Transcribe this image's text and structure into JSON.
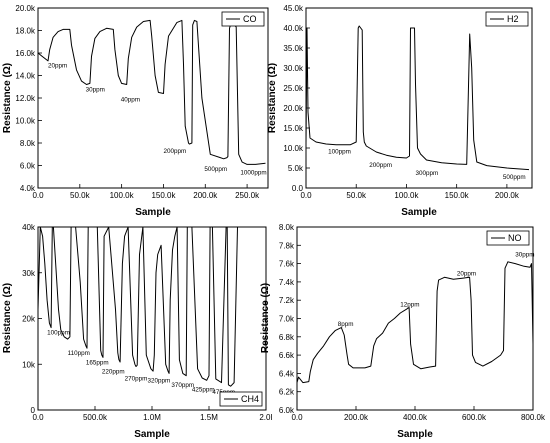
{
  "chart_data": [
    {
      "type": "line",
      "xlabel": "Sample",
      "ylabel": "Resistance (Ω)",
      "xlim": [
        0,
        275000
      ],
      "ylim": [
        4000,
        20000
      ],
      "xticks": [
        0,
        50000,
        100000,
        150000,
        200000,
        250000
      ],
      "xtick_labels": [
        "0.0",
        "50.0k",
        "100.0k",
        "150.0k",
        "200.0k",
        "250.0k"
      ],
      "yticks": [
        4000,
        6000,
        8000,
        10000,
        12000,
        14000,
        16000,
        18000,
        20000
      ],
      "ytick_labels": [
        "4.0k",
        "6.0k",
        "8.0k",
        "10.0k",
        "12.0k",
        "14.0k",
        "16.0k",
        "18.0k",
        "20.0k"
      ],
      "legend": {
        "label": "CO",
        "position": "top-right"
      },
      "annotations": [
        {
          "text": "20ppm",
          "x": 12000,
          "y": 14700
        },
        {
          "text": "30ppm",
          "x": 57000,
          "y": 12600
        },
        {
          "text": "40ppm",
          "x": 99000,
          "y": 11700
        },
        {
          "text": "200ppm",
          "x": 150000,
          "y": 7100
        },
        {
          "text": "500ppm",
          "x": 199000,
          "y": 5500
        },
        {
          "text": "1000ppm",
          "x": 242000,
          "y": 5200
        }
      ],
      "series": [
        {
          "x": [
            0,
            5000,
            12000,
            14000,
            18000,
            24000,
            30000,
            38000,
            40000,
            46000,
            52000,
            58000,
            62000,
            64000,
            68000,
            74000,
            82000,
            90000,
            92000,
            96000,
            100000,
            106000,
            108000,
            112000,
            118000,
            126000,
            134000,
            136000,
            140000,
            144000,
            150000,
            152000,
            156000,
            166000,
            172000,
            174000,
            176000,
            180000,
            181000,
            184000,
            185000,
            187000,
            190000,
            196000,
            206000,
            218000,
            222000,
            226000,
            227000,
            229000,
            231000,
            234000,
            237000,
            240000,
            244000,
            250000,
            260000,
            272000
          ],
          "values": [
            16000,
            15700,
            15300,
            16300,
            17400,
            17900,
            18100,
            18100,
            16700,
            14500,
            13500,
            13200,
            13300,
            15700,
            17300,
            17900,
            18200,
            18100,
            16300,
            14000,
            13300,
            13200,
            15500,
            17400,
            18300,
            18800,
            18900,
            17500,
            14000,
            12500,
            12400,
            15000,
            17500,
            18700,
            18900,
            15000,
            9500,
            8000,
            7900,
            8000,
            18500,
            18900,
            18800,
            12000,
            7000,
            6700,
            6600,
            6700,
            6800,
            18200,
            18700,
            18600,
            18300,
            7000,
            6300,
            6100,
            6100,
            6200
          ]
        }
      ]
    },
    {
      "type": "line",
      "xlabel": "Sample",
      "ylabel": "Resistance (Ω)",
      "xlim": [
        0,
        225000
      ],
      "ylim": [
        0,
        45000
      ],
      "xticks": [
        0,
        50000,
        100000,
        150000,
        200000
      ],
      "xtick_labels": [
        "0.0",
        "50.0k",
        "100.0k",
        "150.0k",
        "200.0k"
      ],
      "yticks": [
        0,
        5000,
        10000,
        15000,
        20000,
        25000,
        30000,
        35000,
        40000,
        45000
      ],
      "ytick_labels": [
        "0.0",
        "5.0k",
        "10.0k",
        "15.0k",
        "20.0k",
        "25.0k",
        "30.0k",
        "35.0k",
        "40.0k",
        "45.0k"
      ],
      "legend": {
        "label": "H2",
        "position": "top-right"
      },
      "annotations": [
        {
          "text": "100ppm",
          "x": 22000,
          "y": 8600
        },
        {
          "text": "200ppm",
          "x": 63000,
          "y": 5300
        },
        {
          "text": "300ppm",
          "x": 109000,
          "y": 3300
        },
        {
          "text": "500ppm",
          "x": 196000,
          "y": 2300
        }
      ],
      "series": [
        {
          "x": [
            0,
            1000,
            2000,
            4000,
            10000,
            20000,
            30000,
            44000,
            50000,
            52000,
            53000,
            56000,
            57000,
            58000,
            60000,
            70000,
            80000,
            90000,
            100000,
            103000,
            104000,
            108000,
            109000,
            111000,
            114000,
            120000,
            135000,
            150000,
            160000,
            163000,
            165000,
            167000,
            170000,
            180000,
            200000,
            222000
          ],
          "values": [
            11000,
            40000,
            19000,
            12500,
            11500,
            11000,
            10800,
            10800,
            11500,
            40000,
            40500,
            39500,
            14000,
            11500,
            10500,
            9000,
            8200,
            7700,
            7500,
            8000,
            40000,
            40000,
            26000,
            10000,
            8500,
            7000,
            6300,
            6000,
            5900,
            38500,
            30000,
            12000,
            6500,
            5600,
            5000,
            4600
          ]
        }
      ]
    },
    {
      "type": "line",
      "xlabel": "Sample",
      "ylabel": "Resistance (Ω)",
      "xlim": [
        0,
        2000000
      ],
      "ylim": [
        0,
        40000
      ],
      "xticks": [
        0,
        500000,
        1000000,
        1500000,
        2000000
      ],
      "xtick_labels": [
        "0.0",
        "500.0k",
        "1.0M",
        "1.5M",
        "2.0I"
      ],
      "yticks": [
        0,
        10000,
        20000,
        30000,
        40000
      ],
      "ytick_labels": [
        "0",
        "10k",
        "20k",
        "30k",
        "40k"
      ],
      "legend": {
        "label": "CH4",
        "position": "bottom-right"
      },
      "annotations": [
        {
          "text": "100ppm",
          "x": 80000,
          "y": 16500
        },
        {
          "text": "110ppm",
          "x": 260000,
          "y": 12000
        },
        {
          "text": "165ppm",
          "x": 420000,
          "y": 10000
        },
        {
          "text": "220ppm",
          "x": 560000,
          "y": 8000
        },
        {
          "text": "270ppm",
          "x": 760000,
          "y": 6500
        },
        {
          "text": "320ppm",
          "x": 960000,
          "y": 6000
        },
        {
          "text": "370ppm",
          "x": 1170000,
          "y": 5000
        },
        {
          "text": "425ppm",
          "x": 1350000,
          "y": 4000
        },
        {
          "text": "475ppm",
          "x": 1530000,
          "y": 3500
        }
      ],
      "series": [
        {
          "x": [
            0,
            20000,
            40000,
            60000,
            80000,
            100000,
            115000,
            125000,
            135000,
            180000,
            200000,
            230000,
            260000,
            280000,
            290000,
            320000,
            330000,
            370000,
            400000,
            420000,
            430000,
            440000,
            470000,
            520000,
            550000,
            560000,
            570000,
            580000,
            620000,
            680000,
            700000,
            710000,
            720000,
            740000,
            760000,
            790000,
            830000,
            850000,
            860000,
            870000,
            890000,
            920000,
            950000,
            990000,
            1010000,
            1020000,
            1035000,
            1050000,
            1080000,
            1120000,
            1140000,
            1150000,
            1160000,
            1180000,
            1200000,
            1220000,
            1240000,
            1270000,
            1300000,
            1310000,
            1325000,
            1350000,
            1400000,
            1440000,
            1480000,
            1500000,
            1510000,
            1530000,
            1560000,
            1610000,
            1650000,
            1660000,
            1670000,
            1690000,
            1720000,
            1750000,
            1780000,
            1800000,
            1830000,
            1860000
          ],
          "values": [
            22000,
            40000,
            38000,
            32000,
            24000,
            19000,
            18000,
            40000,
            40000,
            22000,
            17500,
            16000,
            15500,
            16000,
            40000,
            40000,
            40000,
            28000,
            15500,
            14000,
            13500,
            40000,
            40000,
            40000,
            13000,
            12000,
            11500,
            38000,
            40000,
            22000,
            12500,
            11000,
            10500,
            32000,
            38000,
            40000,
            12000,
            10000,
            9500,
            9800,
            34000,
            40000,
            12000,
            9000,
            8500,
            12000,
            30000,
            34000,
            36000,
            10000,
            8500,
            8000,
            24000,
            35000,
            38000,
            40000,
            11000,
            8000,
            7500,
            40000,
            40000,
            40000,
            9000,
            7000,
            6500,
            7500,
            40000,
            40000,
            6800,
            6000,
            40000,
            40000,
            5500,
            5200,
            6000,
            40000,
            40000,
            40000,
            40000,
            40000
          ]
        }
      ]
    },
    {
      "type": "line",
      "xlabel": "Sample",
      "ylabel": "Resistance (Ω)",
      "xlim": [
        0,
        800000
      ],
      "ylim": [
        6000,
        8000
      ],
      "xticks": [
        0,
        200000,
        400000,
        600000,
        800000
      ],
      "xtick_labels": [
        "0.0",
        "200.0k",
        "400.0k",
        "600.0k",
        "800.0k"
      ],
      "yticks": [
        6000,
        6200,
        6400,
        6600,
        6800,
        7000,
        7200,
        7400,
        7600,
        7800,
        8000
      ],
      "ytick_labels": [
        "6.0k",
        "6.2k",
        "6.4k",
        "6.6k",
        "6.8k",
        "7.0k",
        "7.2k",
        "7.4k",
        "7.6k",
        "7.8k",
        "8.0k"
      ],
      "legend": {
        "label": "NO",
        "position": "top-right"
      },
      "annotations": [
        {
          "text": "8ppm",
          "x": 138000,
          "y": 6920
        },
        {
          "text": "12ppm",
          "x": 350000,
          "y": 7130
        },
        {
          "text": "20ppm",
          "x": 542000,
          "y": 7470
        },
        {
          "text": "30ppm",
          "x": 740000,
          "y": 7680
        }
      ],
      "series": [
        {
          "x": [
            0,
            5000,
            20000,
            40000,
            45000,
            55000,
            70000,
            90000,
            110000,
            130000,
            150000,
            160000,
            170000,
            175000,
            190000,
            230000,
            250000,
            260000,
            270000,
            290000,
            310000,
            330000,
            350000,
            370000,
            380000,
            385000,
            395000,
            420000,
            450000,
            470000,
            475000,
            480000,
            500000,
            530000,
            560000,
            585000,
            590000,
            595000,
            605000,
            630000,
            660000,
            690000,
            700000,
            705000,
            715000,
            740000,
            770000,
            790000,
            795000,
            800000
          ],
          "values": [
            6300,
            6360,
            6300,
            6310,
            6420,
            6550,
            6620,
            6700,
            6800,
            6870,
            6900,
            6820,
            6600,
            6500,
            6460,
            6460,
            6480,
            6700,
            6780,
            6840,
            6950,
            7000,
            7060,
            7100,
            7120,
            6720,
            6500,
            6450,
            6470,
            6480,
            7300,
            7420,
            7450,
            7430,
            7440,
            7450,
            7200,
            6600,
            6520,
            6480,
            6530,
            6600,
            6650,
            7550,
            7620,
            7600,
            7570,
            7560,
            7600,
            6720
          ]
        }
      ]
    }
  ]
}
